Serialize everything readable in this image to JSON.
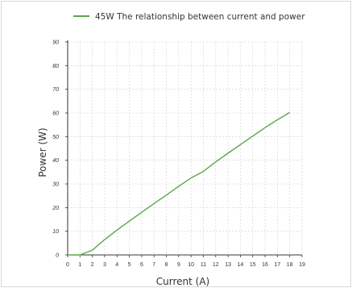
{
  "chart_data": {
    "type": "line",
    "title": "",
    "xlabel": "Current (A)",
    "ylabel": "Power (W)",
    "x_ticks": [
      "0",
      "1",
      "2",
      "3",
      "4",
      "5",
      "6",
      "7",
      "8",
      "9",
      "10",
      "11",
      "12",
      "13",
      "14",
      "15",
      "16",
      "17",
      "18",
      "19"
    ],
    "y_ticks": [
      "0",
      "10",
      "20",
      "30",
      "40",
      "50",
      "60",
      "70",
      "80",
      "90"
    ],
    "xlim": [
      0,
      19
    ],
    "ylim": [
      0,
      90
    ],
    "grid": true,
    "legend_position": "top",
    "series": [
      {
        "name": "45W The relationship between current and power",
        "color": "#5aa748",
        "x": [
          0,
          1,
          2,
          3,
          4,
          5,
          6,
          7,
          8,
          9,
          10,
          11,
          12,
          13,
          14,
          15,
          16,
          17,
          18
        ],
        "y": [
          0,
          0,
          2,
          6.5,
          10.5,
          14.3,
          18,
          21.7,
          25.3,
          29,
          32.5,
          35.3,
          39.3,
          43,
          46.6,
          50.2,
          53.8,
          57.1,
          60.2
        ]
      }
    ]
  }
}
